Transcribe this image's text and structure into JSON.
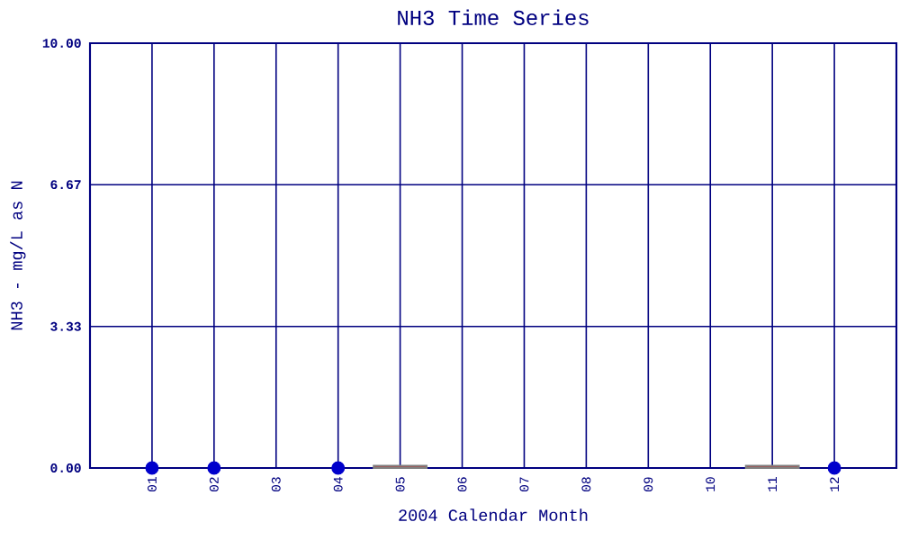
{
  "chart_data": {
    "type": "scatter",
    "title": "NH3 Time Series",
    "xlabel": "2004 Calendar Month",
    "ylabel": "NH3 - mg/L as N",
    "categories": [
      "01",
      "02",
      "03",
      "04",
      "05",
      "06",
      "07",
      "08",
      "09",
      "10",
      "11",
      "12"
    ],
    "series": [
      {
        "type": "scatter",
        "color": "#0000cc",
        "values": [
          0,
          0,
          null,
          0,
          null,
          null,
          null,
          null,
          null,
          null,
          null,
          0
        ]
      },
      {
        "type": "bar",
        "color": "#ee0000",
        "values": [
          null,
          null,
          null,
          null,
          0.05,
          null,
          null,
          null,
          null,
          null,
          0.05,
          null
        ]
      }
    ],
    "ylim": [
      0,
      10
    ],
    "yticks": [
      {
        "value": 0,
        "label": "0.00"
      },
      {
        "value": 3.33,
        "label": "3.33"
      },
      {
        "value": 6.67,
        "label": "6.67"
      },
      {
        "value": 10,
        "label": "10.00"
      }
    ],
    "grid": true,
    "marker": "circle"
  }
}
